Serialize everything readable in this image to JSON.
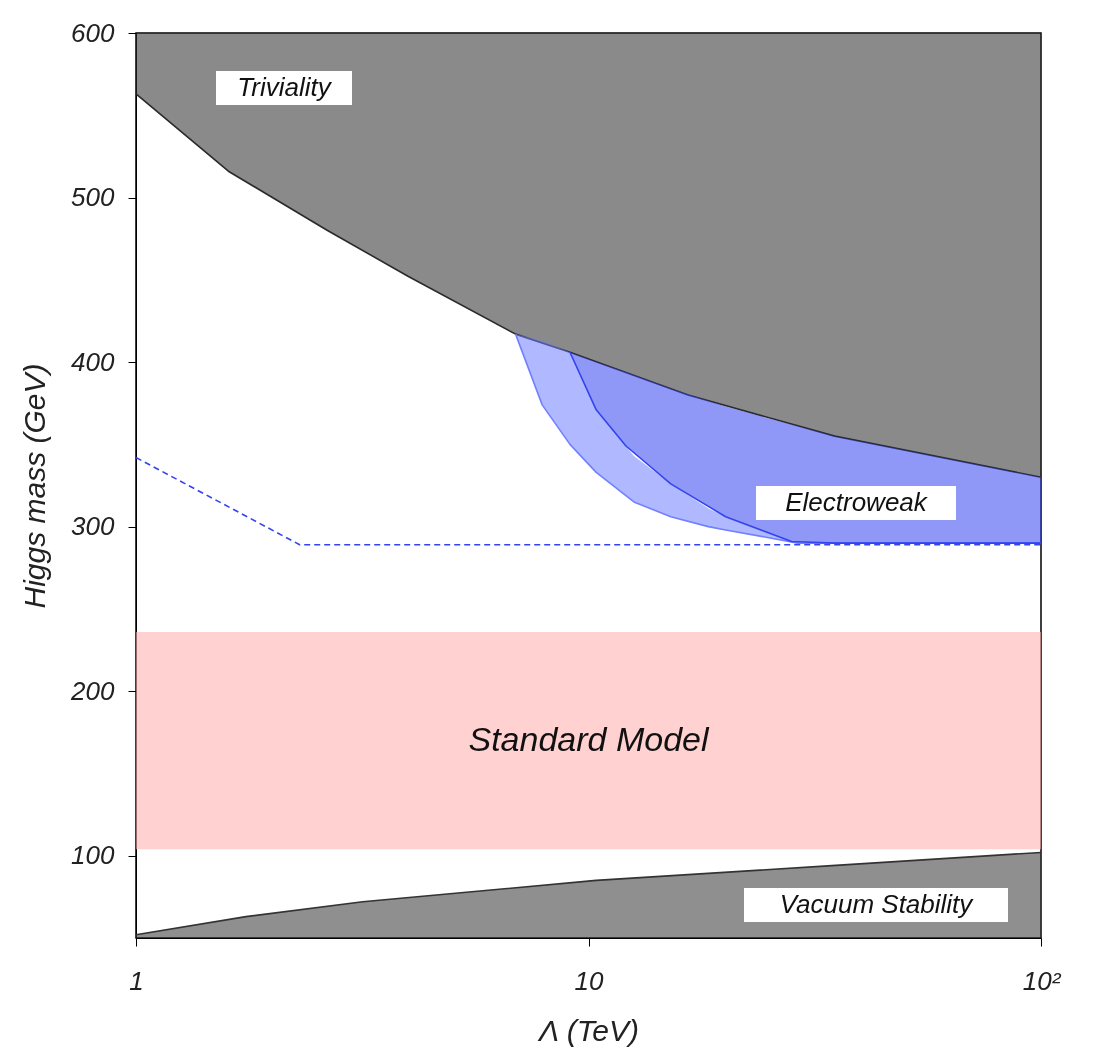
{
  "chart_data": {
    "type": "line",
    "xlabel": "Λ (TeV)",
    "ylabel": "Higgs mass (GeV)",
    "log": "x",
    "xlim": [
      1,
      100
    ],
    "ylim": [
      50,
      600
    ],
    "xticks": [
      1,
      10,
      {
        "value": 100,
        "label": "10²"
      }
    ],
    "yticks": [
      100,
      200,
      300,
      400,
      500,
      600
    ],
    "grid": false,
    "series": [
      {
        "color": "#2a2a2a",
        "x": [
          1,
          1.6,
          2.65,
          4,
          6.9,
          9.1,
          16.6,
          35,
          100
        ],
        "values": [
          563,
          516,
          480,
          452,
          417,
          406,
          380,
          355,
          330
        ],
        "lower": [
          563,
          516,
          480,
          452,
          417,
          406,
          380,
          355,
          330
        ],
        "upper": [
          600,
          600,
          600,
          600,
          600,
          600,
          600,
          600,
          600
        ]
      },
      {
        "color": "#333333",
        "x": [
          1,
          1.75,
          3.17,
          10.4,
          34.5,
          100
        ],
        "values": [
          52,
          63,
          72,
          85,
          94,
          102
        ],
        "lower": [
          50,
          50,
          50,
          50,
          50,
          50
        ],
        "upper": [
          52,
          63,
          72,
          85,
          94,
          102
        ]
      },
      {
        "color": "#7080ff",
        "x": [
          6.9,
          7.9,
          9.1,
          10.4,
          12.6,
          15.2,
          18.4,
          20.1,
          29,
          100
        ],
        "values": [
          417,
          374,
          350,
          333,
          315,
          306,
          300,
          298,
          290,
          290
        ],
        "lower": [
          417,
          374,
          350,
          333,
          315,
          306,
          300,
          298,
          290,
          290
        ],
        "upper": [
          417,
          413,
          406,
          371,
          343,
          326,
          311,
          306,
          290,
          290
        ]
      },
      {
        "color": "#3344ee",
        "x": [
          9.1,
          10.4,
          12.1,
          15.2,
          20.1,
          28.1,
          35,
          100
        ],
        "values": [
          406,
          371,
          349,
          326,
          306,
          291,
          290,
          290
        ],
        "lower": [
          406,
          371,
          349,
          326,
          306,
          291,
          290,
          290
        ],
        "upper": [
          406,
          400,
          394,
          384,
          373,
          362,
          355,
          330
        ]
      },
      {
        "color": "#3344ee",
        "line_style": "dashed",
        "x": [
          1,
          2.3,
          100
        ],
        "values": [
          342,
          289,
          289
        ]
      }
    ],
    "bands": [
      {
        "axis": "y",
        "from": 104,
        "to": 236,
        "label": "Standard Model",
        "color": "#ffb3b3"
      }
    ],
    "annotations": [
      "Triviality",
      "Electroweak",
      "Vacuum Stability"
    ]
  }
}
